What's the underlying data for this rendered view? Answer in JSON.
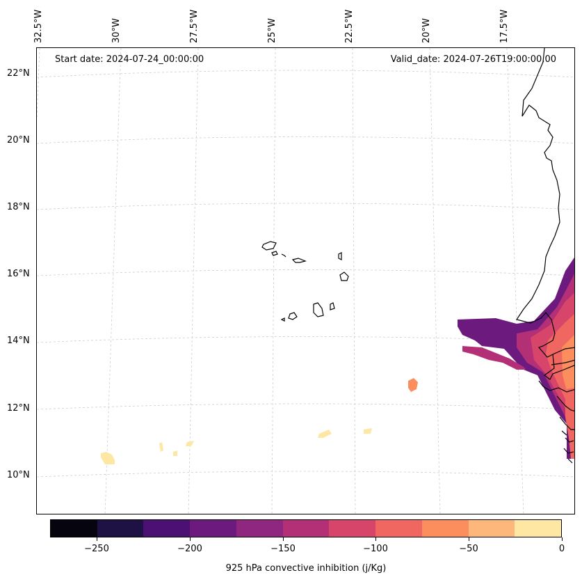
{
  "map": {
    "start_date": "Start date: 2024-07-24_00:00:00",
    "valid_date": "Valid_date: 2024-07-26T19:00:00.00",
    "longitude_labels": [
      "32.5°W",
      "30°W",
      "27.5°W",
      "25°W",
      "22.5°W",
      "20°W",
      "17.5°W"
    ],
    "latitude_labels": [
      "22°N",
      "20°N",
      "18°N",
      "16°N",
      "14°N",
      "12°N",
      "10°N"
    ],
    "coastline_color": "#000000",
    "gridline_color": "#cccccc"
  },
  "colorbar": {
    "title": "925 hPa convective inhibition (j/Kg)",
    "tick_labels": [
      "−250",
      "−200",
      "−150",
      "−100",
      "−50",
      "0"
    ],
    "levels": [
      -275,
      -250,
      -225,
      -200,
      -175,
      -150,
      -125,
      -100,
      -75,
      -50,
      -25,
      0
    ],
    "colors": [
      "#05040f",
      "#1e1144",
      "#4c0f73",
      "#6d1a7e",
      "#8f2680",
      "#b33077",
      "#d8456b",
      "#f06762",
      "#fc8d5d",
      "#fdb77a",
      "#fde7a2"
    ]
  }
}
